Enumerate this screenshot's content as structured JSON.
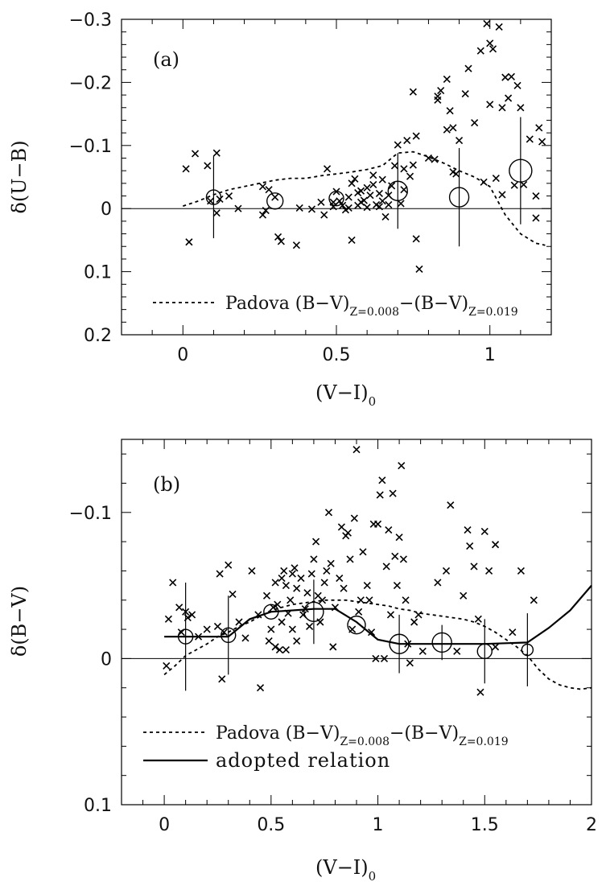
{
  "chart_data": [
    {
      "panel": "a",
      "type": "scatter",
      "panel_label": "(a)",
      "xlabel_main": "(V−I)",
      "xlabel_sub": "0",
      "ylabel": "δ(U−B)",
      "xlim": [
        -0.2,
        1.2
      ],
      "ylim": [
        -0.3,
        0.2
      ],
      "y_inverted": true,
      "x_ticks": [
        0,
        0.5,
        1
      ],
      "x_tick_labels": [
        "0",
        "0.5",
        "1"
      ],
      "y_ticks": [
        -0.3,
        -0.2,
        -0.1,
        0,
        0.1,
        0.2
      ],
      "y_tick_labels": [
        "−0.3",
        "−0.2",
        "−0.1",
        "0",
        "0.1",
        "0.2"
      ],
      "zero_line": true,
      "legend": [
        {
          "style": "dashed",
          "text": "Padova (B−V)",
          "sub1": "Z=0.008",
          "mid": "−(B−V)",
          "sub2": "Z=0.019"
        }
      ],
      "stars": [
        [
          0.01,
          -0.063
        ],
        [
          0.02,
          0.053
        ],
        [
          0.04,
          -0.087
        ],
        [
          0.08,
          -0.068
        ],
        [
          0.09,
          -0.012
        ],
        [
          0.11,
          0.007
        ],
        [
          0.11,
          -0.088
        ],
        [
          0.12,
          -0.015
        ],
        [
          0.15,
          -0.02
        ],
        [
          0.18,
          0.0
        ],
        [
          0.26,
          -0.035
        ],
        [
          0.26,
          0.01
        ],
        [
          0.27,
          0.003
        ],
        [
          0.28,
          -0.03
        ],
        [
          0.3,
          -0.018
        ],
        [
          0.31,
          0.045
        ],
        [
          0.32,
          0.052
        ],
        [
          0.37,
          0.058
        ],
        [
          0.38,
          -0.001
        ],
        [
          0.42,
          0.001
        ],
        [
          0.45,
          -0.01
        ],
        [
          0.46,
          0.01
        ],
        [
          0.47,
          -0.063
        ],
        [
          0.49,
          -0.01
        ],
        [
          0.49,
          -0.003
        ],
        [
          0.5,
          -0.027
        ],
        [
          0.51,
          -0.012
        ],
        [
          0.52,
          -0.005
        ],
        [
          0.53,
          0.002
        ],
        [
          0.54,
          -0.001
        ],
        [
          0.54,
          -0.018
        ],
        [
          0.55,
          0.05
        ],
        [
          0.55,
          -0.04
        ],
        [
          0.56,
          -0.047
        ],
        [
          0.57,
          -0.025
        ],
        [
          0.57,
          -0.005
        ],
        [
          0.58,
          -0.028
        ],
        [
          0.58,
          -0.01
        ],
        [
          0.59,
          -0.013
        ],
        [
          0.6,
          -0.033
        ],
        [
          0.6,
          -0.002
        ],
        [
          0.61,
          -0.021
        ],
        [
          0.62,
          -0.053
        ],
        [
          0.62,
          -0.038
        ],
        [
          0.63,
          -0.006
        ],
        [
          0.64,
          -0.024
        ],
        [
          0.64,
          -0.003
        ],
        [
          0.65,
          -0.012
        ],
        [
          0.65,
          -0.046
        ],
        [
          0.66,
          0.013
        ],
        [
          0.67,
          -0.021
        ],
        [
          0.67,
          -0.006
        ],
        [
          0.68,
          -0.036
        ],
        [
          0.69,
          -0.068
        ],
        [
          0.7,
          -0.101
        ],
        [
          0.71,
          -0.008
        ],
        [
          0.72,
          -0.063
        ],
        [
          0.72,
          -0.03
        ],
        [
          0.73,
          -0.108
        ],
        [
          0.74,
          -0.051
        ],
        [
          0.75,
          -0.069
        ],
        [
          0.75,
          -0.185
        ],
        [
          0.76,
          -0.115
        ],
        [
          0.76,
          0.048
        ],
        [
          0.77,
          0.096
        ],
        [
          0.8,
          -0.08
        ],
        [
          0.82,
          -0.078
        ],
        [
          0.83,
          -0.172
        ],
        [
          0.83,
          -0.178
        ],
        [
          0.84,
          -0.187
        ],
        [
          0.86,
          -0.125
        ],
        [
          0.86,
          -0.205
        ],
        [
          0.87,
          -0.155
        ],
        [
          0.88,
          -0.058
        ],
        [
          0.88,
          -0.128
        ],
        [
          0.89,
          -0.055
        ],
        [
          0.9,
          -0.108
        ],
        [
          0.92,
          -0.182
        ],
        [
          0.93,
          -0.222
        ],
        [
          0.95,
          -0.136
        ],
        [
          0.97,
          -0.25
        ],
        [
          0.98,
          -0.042
        ],
        [
          0.99,
          -0.293
        ],
        [
          1.0,
          -0.262
        ],
        [
          1.0,
          -0.165
        ],
        [
          1.01,
          -0.253
        ],
        [
          1.02,
          -0.048
        ],
        [
          1.03,
          -0.288
        ],
        [
          1.04,
          -0.022
        ],
        [
          1.04,
          -0.16
        ],
        [
          1.05,
          -0.208
        ],
        [
          1.06,
          -0.175
        ],
        [
          1.07,
          -0.209
        ],
        [
          1.08,
          -0.037
        ],
        [
          1.09,
          -0.195
        ],
        [
          1.1,
          -0.16
        ],
        [
          1.11,
          -0.038
        ],
        [
          1.13,
          -0.11
        ],
        [
          1.15,
          -0.02
        ],
        [
          1.15,
          0.015
        ],
        [
          1.16,
          -0.128
        ],
        [
          1.17,
          -0.106
        ]
      ],
      "bins": [
        {
          "x": 0.1,
          "y": -0.018,
          "err": 0.065,
          "r": 0.45
        },
        {
          "x": 0.3,
          "y": -0.012,
          "err": 0.0,
          "r": 0.5
        },
        {
          "x": 0.5,
          "y": -0.016,
          "err": 0.0,
          "r": 0.45
        },
        {
          "x": 0.7,
          "y": -0.028,
          "err": 0.06,
          "r": 0.6
        },
        {
          "x": 0.9,
          "y": -0.018,
          "err": 0.078,
          "r": 0.6
        },
        {
          "x": 1.1,
          "y": -0.06,
          "err": 0.085,
          "r": 0.7
        }
      ],
      "padova": [
        [
          0.0,
          -0.004
        ],
        [
          0.05,
          -0.012
        ],
        [
          0.1,
          -0.022
        ],
        [
          0.15,
          -0.03
        ],
        [
          0.2,
          -0.035
        ],
        [
          0.25,
          -0.04
        ],
        [
          0.3,
          -0.045
        ],
        [
          0.35,
          -0.048
        ],
        [
          0.4,
          -0.048
        ],
        [
          0.45,
          -0.052
        ],
        [
          0.5,
          -0.055
        ],
        [
          0.55,
          -0.058
        ],
        [
          0.6,
          -0.062
        ],
        [
          0.65,
          -0.068
        ],
        [
          0.7,
          -0.088
        ],
        [
          0.75,
          -0.09
        ],
        [
          0.8,
          -0.082
        ],
        [
          0.85,
          -0.072
        ],
        [
          0.9,
          -0.06
        ],
        [
          0.95,
          -0.05
        ],
        [
          1.0,
          -0.035
        ],
        [
          1.05,
          0.01
        ],
        [
          1.1,
          0.04
        ],
        [
          1.15,
          0.055
        ],
        [
          1.18,
          0.058
        ]
      ]
    },
    {
      "panel": "b",
      "type": "scatter",
      "panel_label": "(b)",
      "xlabel_main": "(V−I)",
      "xlabel_sub": "0",
      "ylabel": "δ(B−V)",
      "xlim": [
        -0.2,
        2.0
      ],
      "ylim": [
        -0.15,
        0.1
      ],
      "y_inverted": true,
      "x_ticks": [
        0,
        0.5,
        1,
        1.5,
        2
      ],
      "x_tick_labels": [
        "0",
        "0.5",
        "1",
        "1.5",
        "2"
      ],
      "y_ticks": [
        -0.1,
        0,
        0.1
      ],
      "y_tick_labels": [
        "−0.1",
        "0",
        "0.1"
      ],
      "zero_line": true,
      "legend": [
        {
          "style": "dashed",
          "text": "Padova (B−V)",
          "sub1": "Z=0.008",
          "mid": "−(B−V)",
          "sub2": "Z=0.019"
        },
        {
          "style": "solid",
          "text": "adopted relation"
        }
      ],
      "stars": [
        [
          0.01,
          0.005
        ],
        [
          0.02,
          -0.027
        ],
        [
          0.04,
          -0.052
        ],
        [
          0.07,
          -0.035
        ],
        [
          0.08,
          -0.018
        ],
        [
          0.1,
          -0.032
        ],
        [
          0.11,
          -0.028
        ],
        [
          0.13,
          -0.03
        ],
        [
          0.16,
          -0.015
        ],
        [
          0.2,
          -0.02
        ],
        [
          0.25,
          -0.022
        ],
        [
          0.26,
          -0.058
        ],
        [
          0.27,
          0.014
        ],
        [
          0.28,
          -0.018
        ],
        [
          0.3,
          -0.064
        ],
        [
          0.32,
          -0.044
        ],
        [
          0.35,
          -0.025
        ],
        [
          0.38,
          -0.014
        ],
        [
          0.41,
          -0.06
        ],
        [
          0.44,
          -0.03
        ],
        [
          0.45,
          0.02
        ],
        [
          0.48,
          -0.043
        ],
        [
          0.49,
          -0.012
        ],
        [
          0.5,
          -0.02
        ],
        [
          0.51,
          -0.035
        ],
        [
          0.52,
          -0.008
        ],
        [
          0.52,
          -0.052
        ],
        [
          0.53,
          -0.037
        ],
        [
          0.54,
          -0.006
        ],
        [
          0.55,
          -0.055
        ],
        [
          0.55,
          -0.025
        ],
        [
          0.56,
          -0.06
        ],
        [
          0.57,
          -0.05
        ],
        [
          0.57,
          -0.006
        ],
        [
          0.58,
          -0.031
        ],
        [
          0.59,
          -0.04
        ],
        [
          0.6,
          -0.058
        ],
        [
          0.6,
          -0.02
        ],
        [
          0.61,
          -0.062
        ],
        [
          0.62,
          -0.048
        ],
        [
          0.62,
          -0.012
        ],
        [
          0.64,
          -0.055
        ],
        [
          0.65,
          -0.03
        ],
        [
          0.66,
          -0.034
        ],
        [
          0.67,
          -0.045
        ],
        [
          0.68,
          -0.022
        ],
        [
          0.69,
          -0.058
        ],
        [
          0.7,
          -0.068
        ],
        [
          0.71,
          -0.08
        ],
        [
          0.72,
          -0.043
        ],
        [
          0.73,
          -0.025
        ],
        [
          0.74,
          -0.04
        ],
        [
          0.75,
          -0.052
        ],
        [
          0.76,
          -0.06
        ],
        [
          0.77,
          -0.1
        ],
        [
          0.78,
          -0.065
        ],
        [
          0.79,
          -0.008
        ],
        [
          0.8,
          -0.035
        ],
        [
          0.82,
          -0.055
        ],
        [
          0.83,
          -0.09
        ],
        [
          0.84,
          -0.048
        ],
        [
          0.85,
          -0.084
        ],
        [
          0.86,
          -0.086
        ],
        [
          0.87,
          -0.068
        ],
        [
          0.88,
          -0.02
        ],
        [
          0.89,
          -0.096
        ],
        [
          0.9,
          -0.143
        ],
        [
          0.91,
          -0.032
        ],
        [
          0.92,
          -0.04
        ],
        [
          0.93,
          -0.073
        ],
        [
          0.95,
          -0.05
        ],
        [
          0.96,
          -0.04
        ],
        [
          0.97,
          -0.018
        ],
        [
          0.98,
          -0.092
        ],
        [
          0.99,
          0.0
        ],
        [
          1.0,
          -0.092
        ],
        [
          1.01,
          -0.112
        ],
        [
          1.02,
          -0.122
        ],
        [
          1.03,
          0.0
        ],
        [
          1.04,
          -0.063
        ],
        [
          1.05,
          -0.088
        ],
        [
          1.06,
          -0.03
        ],
        [
          1.07,
          -0.113
        ],
        [
          1.08,
          -0.07
        ],
        [
          1.09,
          -0.05
        ],
        [
          1.1,
          -0.083
        ],
        [
          1.11,
          -0.132
        ],
        [
          1.12,
          -0.068
        ],
        [
          1.13,
          -0.04
        ],
        [
          1.14,
          -0.01
        ],
        [
          1.15,
          0.003
        ],
        [
          1.17,
          -0.025
        ],
        [
          1.19,
          -0.03
        ],
        [
          1.21,
          -0.005
        ],
        [
          1.28,
          -0.052
        ],
        [
          1.32,
          -0.06
        ],
        [
          1.34,
          -0.105
        ],
        [
          1.37,
          -0.005
        ],
        [
          1.4,
          -0.043
        ],
        [
          1.42,
          -0.088
        ],
        [
          1.43,
          -0.077
        ],
        [
          1.45,
          -0.063
        ],
        [
          1.47,
          -0.027
        ],
        [
          1.48,
          0.023
        ],
        [
          1.5,
          -0.087
        ],
        [
          1.52,
          -0.06
        ],
        [
          1.55,
          -0.078
        ],
        [
          1.55,
          -0.008
        ],
        [
          1.63,
          -0.018
        ],
        [
          1.67,
          -0.06
        ],
        [
          1.73,
          -0.04
        ]
      ],
      "bins": [
        {
          "x": 0.1,
          "y": -0.015,
          "err": 0.037,
          "r": 0.45
        },
        {
          "x": 0.3,
          "y": -0.016,
          "err": 0.027,
          "r": 0.45
        },
        {
          "x": 0.5,
          "y": -0.032,
          "err": 0.0,
          "r": 0.45
        },
        {
          "x": 0.7,
          "y": -0.032,
          "err": 0.022,
          "r": 0.6
        },
        {
          "x": 0.9,
          "y": -0.023,
          "err": 0.0,
          "r": 0.55
        },
        {
          "x": 1.1,
          "y": -0.01,
          "err": 0.02,
          "r": 0.6
        },
        {
          "x": 1.3,
          "y": -0.011,
          "err": 0.012,
          "r": 0.6
        },
        {
          "x": 1.5,
          "y": -0.005,
          "err": 0.022,
          "r": 0.45
        },
        {
          "x": 1.7,
          "y": -0.006,
          "err": 0.025,
          "r": 0.35
        }
      ],
      "padova": [
        [
          0.0,
          0.011
        ],
        [
          0.05,
          0.005
        ],
        [
          0.1,
          -0.002
        ],
        [
          0.15,
          -0.006
        ],
        [
          0.2,
          -0.01
        ],
        [
          0.25,
          -0.015
        ],
        [
          0.3,
          -0.018
        ],
        [
          0.35,
          -0.022
        ],
        [
          0.4,
          -0.025
        ],
        [
          0.45,
          -0.029
        ],
        [
          0.5,
          -0.033
        ],
        [
          0.55,
          -0.035
        ],
        [
          0.6,
          -0.037
        ],
        [
          0.65,
          -0.038
        ],
        [
          0.7,
          -0.039
        ],
        [
          0.75,
          -0.04
        ],
        [
          0.8,
          -0.04
        ],
        [
          0.85,
          -0.04
        ],
        [
          0.9,
          -0.039
        ],
        [
          0.95,
          -0.038
        ],
        [
          1.0,
          -0.037
        ],
        [
          1.05,
          -0.036
        ],
        [
          1.1,
          -0.034
        ],
        [
          1.15,
          -0.033
        ],
        [
          1.2,
          -0.031
        ],
        [
          1.25,
          -0.03
        ],
        [
          1.3,
          -0.029
        ],
        [
          1.35,
          -0.028
        ],
        [
          1.4,
          -0.027
        ],
        [
          1.45,
          -0.025
        ],
        [
          1.5,
          -0.022
        ],
        [
          1.55,
          -0.018
        ],
        [
          1.6,
          -0.013
        ],
        [
          1.65,
          -0.008
        ],
        [
          1.7,
          -0.002
        ],
        [
          1.75,
          0.007
        ],
        [
          1.8,
          0.014
        ],
        [
          1.85,
          0.018
        ],
        [
          1.9,
          0.02
        ],
        [
          1.95,
          0.021
        ],
        [
          2.0,
          0.02
        ]
      ],
      "adopted": [
        [
          0.0,
          -0.015
        ],
        [
          0.1,
          -0.015
        ],
        [
          0.3,
          -0.015
        ],
        [
          0.4,
          -0.027
        ],
        [
          0.5,
          -0.032
        ],
        [
          0.7,
          -0.034
        ],
        [
          0.8,
          -0.034
        ],
        [
          0.9,
          -0.025
        ],
        [
          1.0,
          -0.013
        ],
        [
          1.1,
          -0.01
        ],
        [
          1.3,
          -0.01
        ],
        [
          1.5,
          -0.01
        ],
        [
          1.7,
          -0.011
        ],
        [
          1.8,
          -0.021
        ],
        [
          1.9,
          -0.033
        ],
        [
          2.0,
          -0.05
        ]
      ]
    }
  ]
}
